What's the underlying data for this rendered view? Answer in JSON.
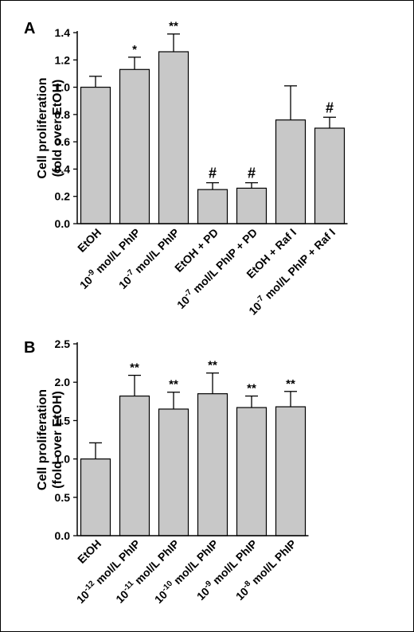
{
  "panels": [
    {
      "letter": "A"
    },
    {
      "letter": "B"
    }
  ],
  "chart_data": [
    {
      "type": "bar",
      "panel": "A",
      "ylabel_line1": "Cell proliferation",
      "ylabel_line2": "(fold over EtOH)",
      "ylim": [
        0,
        1.4
      ],
      "yticks": [
        "0.0",
        "0.2",
        "0.4",
        "0.6",
        "0.8",
        "1.0",
        "1.2",
        "1.4"
      ],
      "bar_color": "#c8c8c8",
      "categories": [
        {
          "pre": "EtOH",
          "sup": "",
          "post": ""
        },
        {
          "pre": "10",
          "sup": "-9",
          "post": " mol/L PhIP"
        },
        {
          "pre": "10",
          "sup": "-7",
          "post": " mol/L PhIP"
        },
        {
          "pre": "EtOH + PD",
          "sup": "",
          "post": ""
        },
        {
          "pre": "10",
          "sup": "-7",
          "post": " mol/L PhIP + PD"
        },
        {
          "pre": "EtOH + Raf I",
          "sup": "",
          "post": ""
        },
        {
          "pre": "10",
          "sup": "-7",
          "post": " mol/L PhIP + Raf I"
        }
      ],
      "values": [
        1.0,
        1.13,
        1.26,
        0.25,
        0.26,
        0.76,
        0.7
      ],
      "errors": [
        0.08,
        0.09,
        0.13,
        0.05,
        0.04,
        0.25,
        0.08
      ],
      "annotations": [
        "",
        "*",
        "**",
        "#",
        "#",
        "",
        "#"
      ]
    },
    {
      "type": "bar",
      "panel": "B",
      "ylabel_line1": "Cell proliferation",
      "ylabel_line2": "(fold over EtOH)",
      "ylim": [
        0,
        2.5
      ],
      "yticks": [
        "0.0",
        "0.5",
        "1.0",
        "1.5",
        "2.0",
        "2.5"
      ],
      "bar_color": "#c8c8c8",
      "categories": [
        {
          "pre": "EtOH",
          "sup": "",
          "post": ""
        },
        {
          "pre": "10",
          "sup": "-12",
          "post": " mol/L PhIP"
        },
        {
          "pre": "10",
          "sup": "-11",
          "post": " mol/L PhIP"
        },
        {
          "pre": "10",
          "sup": "-10",
          "post": " mol/L PhIP"
        },
        {
          "pre": "10",
          "sup": "-9",
          "post": " mol/L PhIP"
        },
        {
          "pre": "10",
          "sup": "-8",
          "post": " mol/L PhIP"
        }
      ],
      "values": [
        1.0,
        1.82,
        1.65,
        1.85,
        1.67,
        1.68
      ],
      "errors": [
        0.21,
        0.27,
        0.22,
        0.27,
        0.15,
        0.2
      ],
      "annotations": [
        "",
        "**",
        "**",
        "**",
        "**",
        "**"
      ]
    }
  ]
}
